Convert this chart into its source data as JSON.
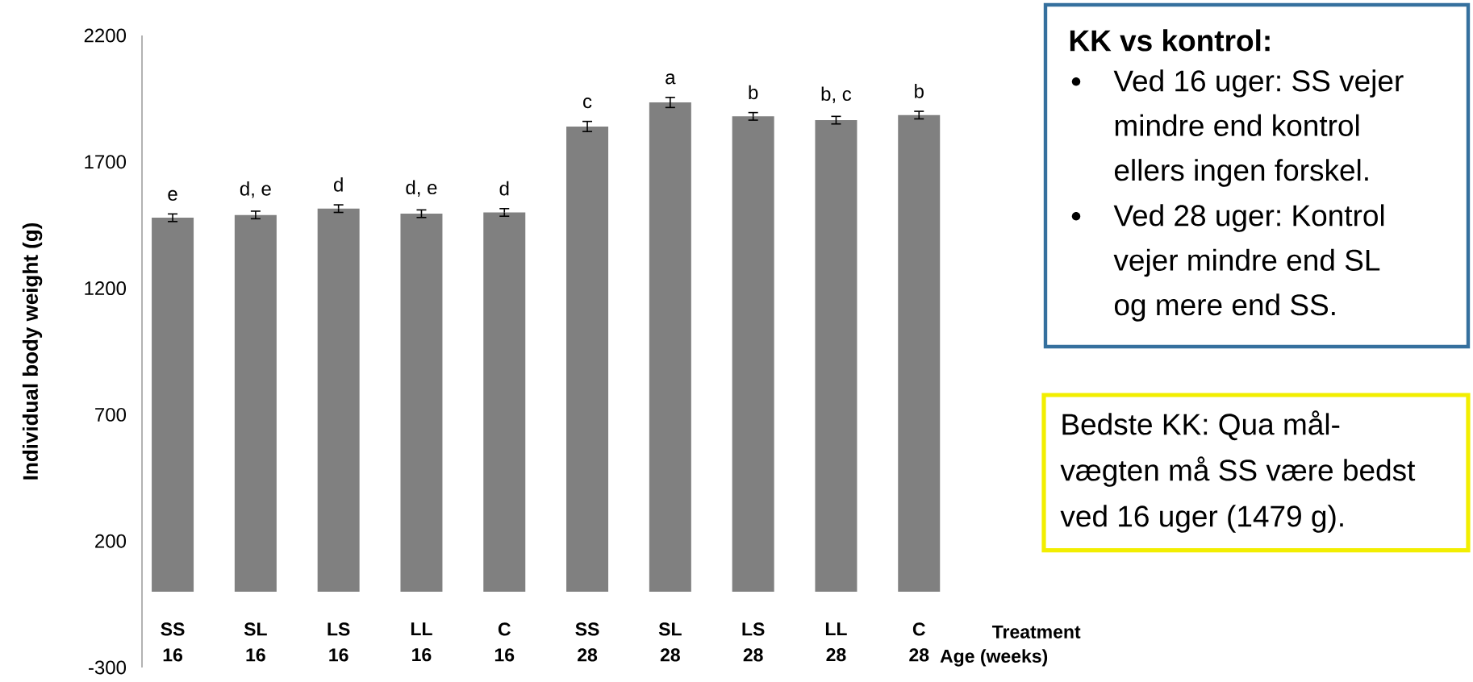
{
  "chart_data": {
    "type": "bar",
    "xlabel": "Treatment",
    "ylabel": "Individual body weight (g)",
    "categories": [
      "SS 16",
      "SL 16",
      "LS 16",
      "LL 16",
      "C 16",
      "SS 28",
      "SL 28",
      "LS 28",
      "LL 28",
      "C 28"
    ],
    "values": [
      1479,
      1490,
      1515,
      1495,
      1500,
      1840,
      1935,
      1880,
      1865,
      1885
    ],
    "errors": [
      15,
      15,
      15,
      15,
      15,
      20,
      20,
      15,
      15,
      15
    ],
    "color": "#808080",
    "ylim": [
      -300,
      2200
    ],
    "yticks": [
      -300,
      200,
      700,
      1200,
      1700,
      2200
    ],
    "annotations": [
      {
        "text": "e",
        "x": "SS 16",
        "y": 1479
      },
      {
        "text": "d, e",
        "x": "SL 16",
        "y": 1490
      },
      {
        "text": "d",
        "x": "LS 16",
        "y": 1515
      },
      {
        "text": "d, e",
        "x": "LL 16",
        "y": 1495
      },
      {
        "text": "d",
        "x": "C 16",
        "y": 1500
      },
      {
        "text": "c",
        "x": "SS 28",
        "y": 1840
      },
      {
        "text": "a",
        "x": "SL 28",
        "y": 1935
      },
      {
        "text": "b",
        "x": "LS 28",
        "y": 1880
      },
      {
        "text": "b, c",
        "x": "LL 28",
        "y": 1865
      },
      {
        "text": "b",
        "x": "C 28",
        "y": 1885
      },
      "KK vs kontrol:",
      "Ved 16 uger: SS vejer mindre end kontrol ellers ingen forskel.",
      "Ved 28 uger: Kontrol vejer mindre end SL og mere end SS.",
      "Bedste KK: Qua mål-vægten må SS være bedst ved 16 uger (1479 g).",
      "Age (weeks)"
    ]
  }
}
